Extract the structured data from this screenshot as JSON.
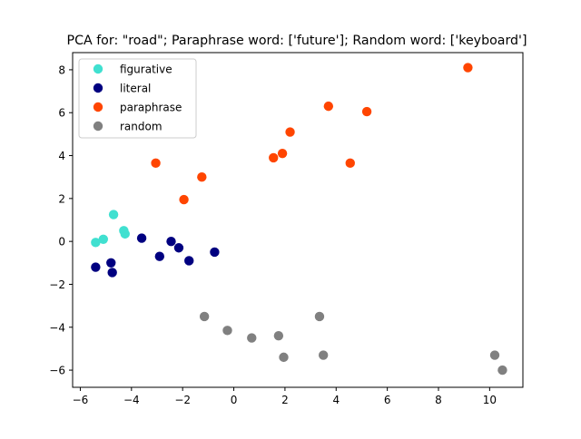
{
  "chart_data": {
    "type": "scatter",
    "title": "PCA for: \"road\"; Paraphrase word: ['future']; Random word: ['keyboard']",
    "xlabel": "",
    "ylabel": "",
    "xlim": [
      -6.3,
      11.3
    ],
    "ylim": [
      -6.8,
      8.8
    ],
    "xticks": [
      -6,
      -4,
      -2,
      0,
      2,
      4,
      6,
      8,
      10
    ],
    "yticks": [
      -6,
      -4,
      -2,
      0,
      2,
      4,
      6,
      8
    ],
    "grid": false,
    "legend_position": "top-left",
    "series": [
      {
        "name": "figurative",
        "color": "#40e0d0",
        "points": [
          {
            "x": -5.4,
            "y": -0.05
          },
          {
            "x": -5.1,
            "y": 0.1
          },
          {
            "x": -4.7,
            "y": 1.25
          },
          {
            "x": -4.3,
            "y": 0.5
          },
          {
            "x": -4.25,
            "y": 0.35
          }
        ]
      },
      {
        "name": "literal",
        "color": "#000080",
        "points": [
          {
            "x": -5.4,
            "y": -1.2
          },
          {
            "x": -4.8,
            "y": -1.0
          },
          {
            "x": -4.75,
            "y": -1.45
          },
          {
            "x": -3.6,
            "y": 0.15
          },
          {
            "x": -2.9,
            "y": -0.7
          },
          {
            "x": -2.45,
            "y": 0.0
          },
          {
            "x": -2.15,
            "y": -0.3
          },
          {
            "x": -1.75,
            "y": -0.9
          },
          {
            "x": -0.75,
            "y": -0.5
          }
        ]
      },
      {
        "name": "paraphrase",
        "color": "#ff4500",
        "points": [
          {
            "x": -3.05,
            "y": 3.65
          },
          {
            "x": -1.95,
            "y": 1.95
          },
          {
            "x": -1.25,
            "y": 3.0
          },
          {
            "x": 1.55,
            "y": 3.9
          },
          {
            "x": 1.9,
            "y": 4.1
          },
          {
            "x": 2.2,
            "y": 5.1
          },
          {
            "x": 3.7,
            "y": 6.3
          },
          {
            "x": 4.55,
            "y": 3.65
          },
          {
            "x": 5.2,
            "y": 6.05
          },
          {
            "x": 9.15,
            "y": 8.1
          }
        ]
      },
      {
        "name": "random",
        "color": "#808080",
        "points": [
          {
            "x": -1.15,
            "y": -3.5
          },
          {
            "x": -0.25,
            "y": -4.15
          },
          {
            "x": 0.7,
            "y": -4.5
          },
          {
            "x": 1.75,
            "y": -4.4
          },
          {
            "x": 1.95,
            "y": -5.4
          },
          {
            "x": 3.35,
            "y": -3.5
          },
          {
            "x": 3.5,
            "y": -5.3
          },
          {
            "x": 10.2,
            "y": -5.3
          },
          {
            "x": 10.5,
            "y": -6.0
          }
        ]
      }
    ]
  }
}
